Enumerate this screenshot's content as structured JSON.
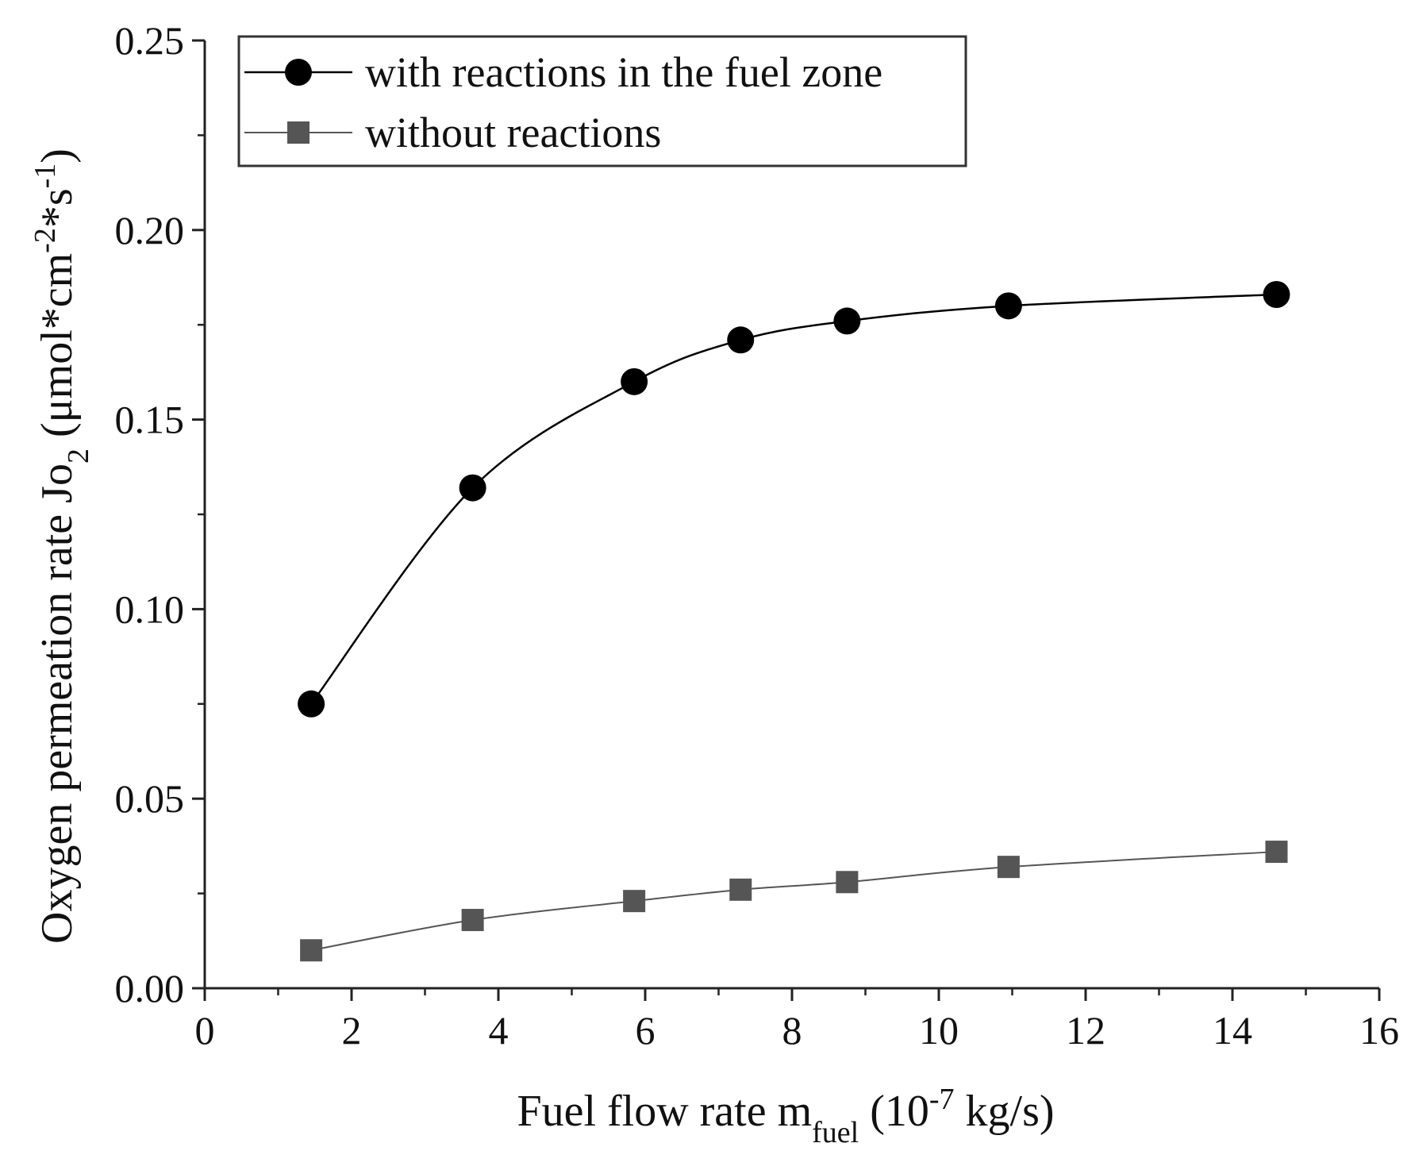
{
  "chart_data": {
    "type": "line",
    "title": "",
    "xlabel": {
      "main": "Fuel flow rate m",
      "sub": "fuel",
      "paren_open": " (10",
      "sup": "-7",
      "units": " kg/s)"
    },
    "ylabel": {
      "main": "Oxygen permeation rate Jo",
      "sub": "2",
      "paren_open": " (μmol*cm",
      "sup1": "-2",
      "mid": "*s",
      "sup2": "-1",
      "close": ")"
    },
    "xlim": [
      0,
      16
    ],
    "ylim": [
      0,
      0.25
    ],
    "x_ticks": [
      "0",
      "2",
      "4",
      "6",
      "8",
      "10",
      "12",
      "14",
      "16"
    ],
    "y_ticks": [
      "0.00",
      "0.05",
      "0.10",
      "0.15",
      "0.20",
      "0.25"
    ],
    "x": [
      1.45,
      3.65,
      5.85,
      7.3,
      8.75,
      10.95,
      14.6
    ],
    "series": [
      {
        "name": "with reactions in the fuel zone",
        "marker": "circle",
        "color": "#000000",
        "values": [
          0.075,
          0.132,
          0.16,
          0.171,
          0.176,
          0.18,
          0.183
        ]
      },
      {
        "name": "without reactions",
        "marker": "square",
        "color": "#555555",
        "values": [
          0.01,
          0.018,
          0.023,
          0.026,
          0.028,
          0.032,
          0.036
        ]
      }
    ],
    "legend_position": "top-left",
    "grid": false
  }
}
